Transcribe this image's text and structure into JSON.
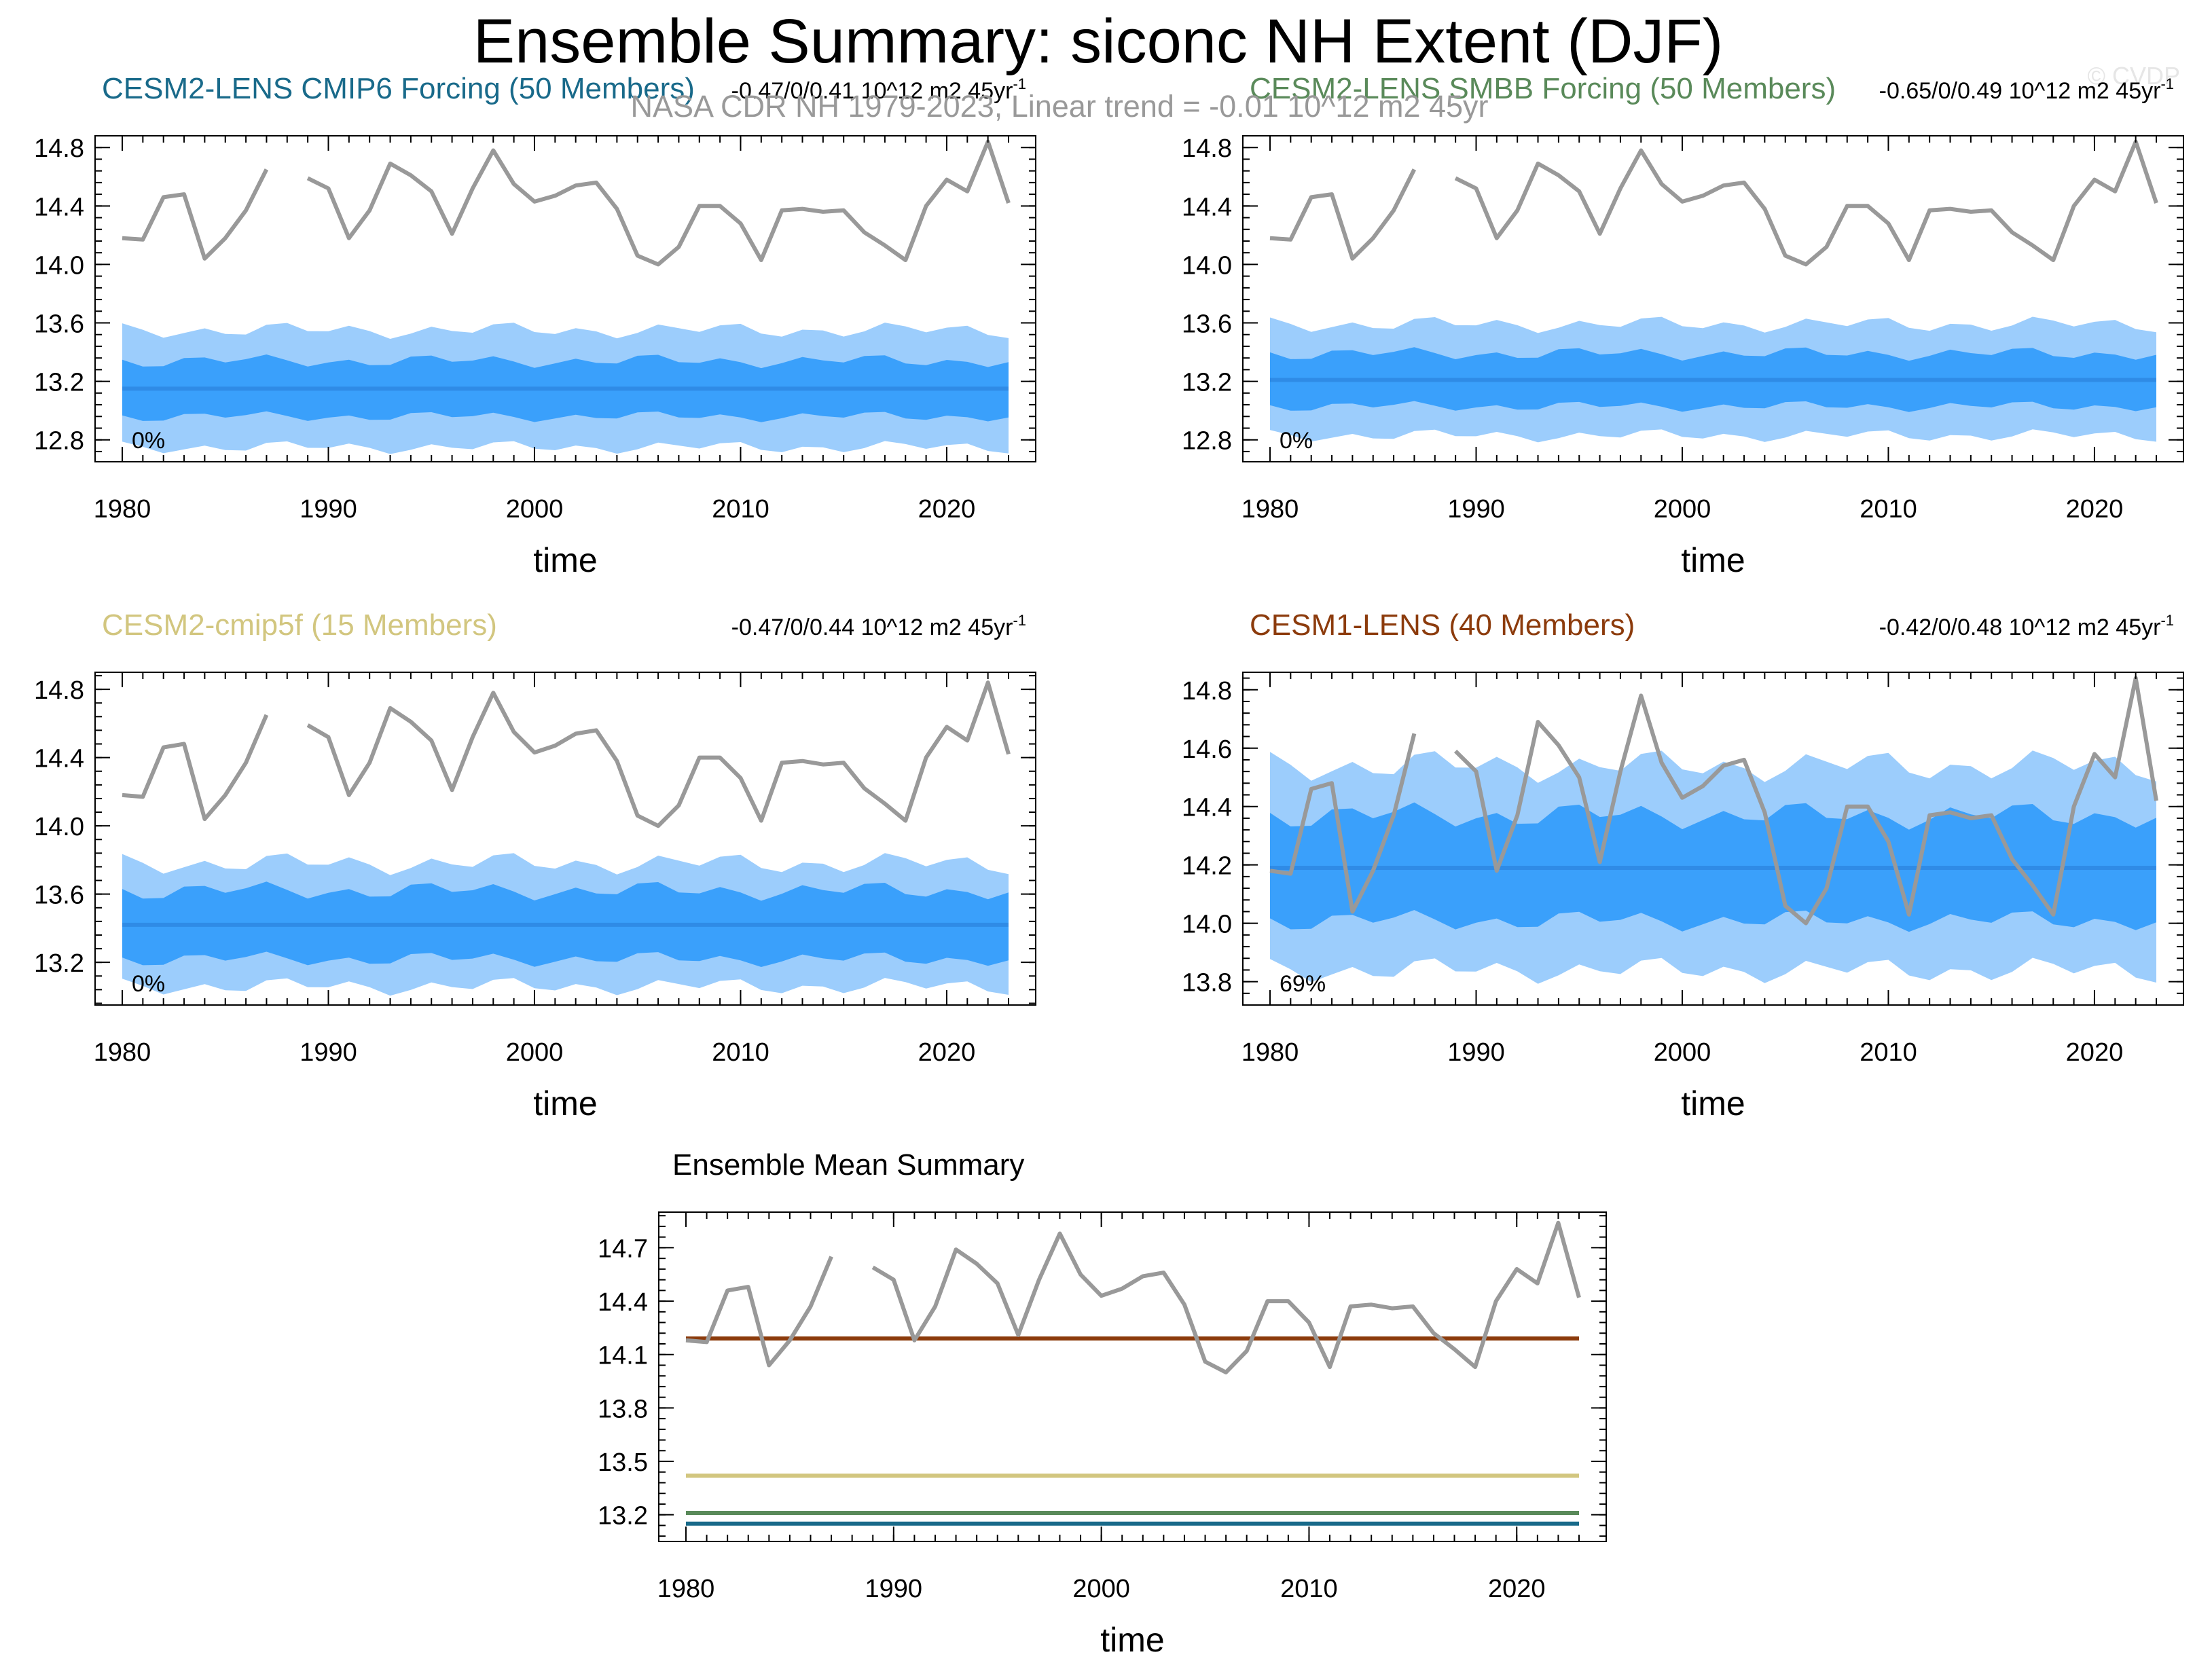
{
  "figure": {
    "title": "Ensemble Summary: siconc NH Extent (DJF)",
    "obs_label": "NASA CDR NH 1979-2023, Linear trend = -0.01 10^12 m2 45yr",
    "watermark": "© CVDP",
    "obs_color": "#999999",
    "band_outer_color": "#9ccdfc",
    "band_inner_color": "#3aa0fb",
    "mean_line_color": "#2f8be6"
  },
  "chart_data": [
    {
      "id": "p1",
      "type": "area",
      "title": "CESM2-LENS CMIP6 Forcing (50 Members)",
      "title_color": "#196a8a",
      "trend_label": "-0.47/0/0.41 10^12 m2 45yr",
      "trend_sup": "-1",
      "percent_label": "0%",
      "xlabel": "time",
      "xlim": [
        1980,
        2023
      ],
      "xticks": [
        1980,
        1990,
        2000,
        2010,
        2020
      ],
      "ylim": [
        12.65,
        14.88
      ],
      "yticks": [
        12.8,
        13.2,
        13.6,
        14.0,
        14.4,
        14.8
      ],
      "ytick_labels": [
        "12.8",
        "13.2",
        "13.6",
        "14.0",
        "14.4",
        "14.8"
      ],
      "ensemble_mean": 13.15,
      "band_10_90": {
        "center": 13.15,
        "half_width": 0.19,
        "wobble": 0.05
      },
      "band_min_max": {
        "center": 13.15,
        "half_width": 0.4,
        "wobble": 0.06
      }
    },
    {
      "id": "p2",
      "type": "area",
      "title": "CESM2-LENS SMBB Forcing (50 Members)",
      "title_color": "#5a8a5a",
      "trend_label": "-0.65/0/0.49 10^12 m2 45yr",
      "trend_sup": "-1",
      "percent_label": "0%",
      "xlabel": "time",
      "xlim": [
        1980,
        2023
      ],
      "xticks": [
        1980,
        1990,
        2000,
        2010,
        2020
      ],
      "ylim": [
        12.65,
        14.88
      ],
      "yticks": [
        12.8,
        13.2,
        13.6,
        14.0,
        14.4,
        14.8
      ],
      "ytick_labels": [
        "12.8",
        "13.2",
        "13.6",
        "14.0",
        "14.4",
        "14.8"
      ],
      "ensemble_mean": 13.21,
      "band_10_90": {
        "center": 13.21,
        "half_width": 0.18,
        "wobble": 0.05
      },
      "band_min_max": {
        "center": 13.21,
        "half_width": 0.38,
        "wobble": 0.06
      }
    },
    {
      "id": "p3",
      "type": "area",
      "title": "CESM2-cmip5f (15 Members)",
      "title_color": "#d2c67f",
      "trend_label": "-0.47/0/0.44 10^12 m2 45yr",
      "trend_sup": "-1",
      "percent_label": "0%",
      "xlabel": "time",
      "xlim": [
        1980,
        2023
      ],
      "xticks": [
        1980,
        1990,
        2000,
        2010,
        2020
      ],
      "ylim": [
        12.95,
        14.9
      ],
      "yticks": [
        13.2,
        13.6,
        14.0,
        14.4,
        14.8
      ],
      "ytick_labels": [
        "13.2",
        "13.6",
        "14.0",
        "14.4",
        "14.8"
      ],
      "ensemble_mean": 13.42,
      "band_10_90": {
        "center": 13.42,
        "half_width": 0.2,
        "wobble": 0.06
      },
      "band_min_max": {
        "center": 13.42,
        "half_width": 0.36,
        "wobble": 0.07
      }
    },
    {
      "id": "p4",
      "type": "area",
      "title": "CESM1-LENS (40 Members)",
      "title_color": "#8c3b0c",
      "trend_label": "-0.42/0/0.48 10^12 m2 45yr",
      "trend_sup": "-1",
      "percent_label": "69%",
      "xlabel": "time",
      "xlim": [
        1980,
        2023
      ],
      "xticks": [
        1980,
        1990,
        2000,
        2010,
        2020
      ],
      "ylim": [
        13.72,
        14.86
      ],
      "yticks": [
        13.8,
        14.0,
        14.2,
        14.4,
        14.6,
        14.8
      ],
      "ytick_labels": [
        "13.8",
        "14.0",
        "14.2",
        "14.4",
        "14.6",
        "14.8"
      ],
      "ensemble_mean": 14.19,
      "band_10_90": {
        "center": 14.19,
        "half_width": 0.18,
        "wobble": 0.05
      },
      "band_min_max": {
        "center": 14.19,
        "half_width": 0.35,
        "wobble": 0.06
      }
    },
    {
      "id": "p5",
      "type": "line",
      "title": "Ensemble Mean Summary",
      "title_color": "#000000",
      "xlabel": "time",
      "xlim": [
        1980,
        2023
      ],
      "xticks": [
        1980,
        1990,
        2000,
        2010,
        2020
      ],
      "ylim": [
        13.05,
        14.9
      ],
      "yticks": [
        13.2,
        13.5,
        13.8,
        14.1,
        14.4,
        14.7
      ],
      "ytick_labels": [
        "13.2",
        "13.5",
        "13.8",
        "14.1",
        "14.4",
        "14.7"
      ],
      "series": [
        {
          "name": "CESM1-LENS",
          "value": 14.19,
          "color": "#8c3b0c"
        },
        {
          "name": "CESM2-cmip5f",
          "value": 13.42,
          "color": "#d2c67f"
        },
        {
          "name": "CESM2-LENS SMBB Forcing",
          "value": 13.21,
          "color": "#5a8a5a"
        },
        {
          "name": "CESM2-LENS CMIP6 Forcing",
          "value": 13.15,
          "color": "#196a8a"
        }
      ]
    }
  ],
  "observations": {
    "name": "NASA CDR NH",
    "years": [
      1980,
      1981,
      1982,
      1983,
      1984,
      1985,
      1986,
      1987,
      1988,
      1989,
      1990,
      1991,
      1992,
      1993,
      1994,
      1995,
      1996,
      1997,
      1998,
      1999,
      2000,
      2001,
      2002,
      2003,
      2004,
      2005,
      2006,
      2007,
      2008,
      2009,
      2010,
      2011,
      2012,
      2013,
      2014,
      2015,
      2016,
      2017,
      2018,
      2019,
      2020,
      2021,
      2022,
      2023
    ],
    "values": [
      14.18,
      14.17,
      14.46,
      14.48,
      14.04,
      14.18,
      14.37,
      14.65,
      null,
      14.59,
      14.52,
      14.18,
      14.37,
      14.69,
      14.61,
      14.5,
      14.21,
      14.52,
      14.78,
      14.55,
      14.43,
      14.47,
      14.54,
      14.56,
      14.38,
      14.06,
      14.0,
      14.12,
      14.4,
      14.4,
      14.28,
      14.03,
      14.37,
      14.38,
      14.36,
      14.37,
      14.22,
      14.13,
      14.03,
      14.4,
      14.58,
      14.5,
      14.84,
      14.42
    ]
  }
}
